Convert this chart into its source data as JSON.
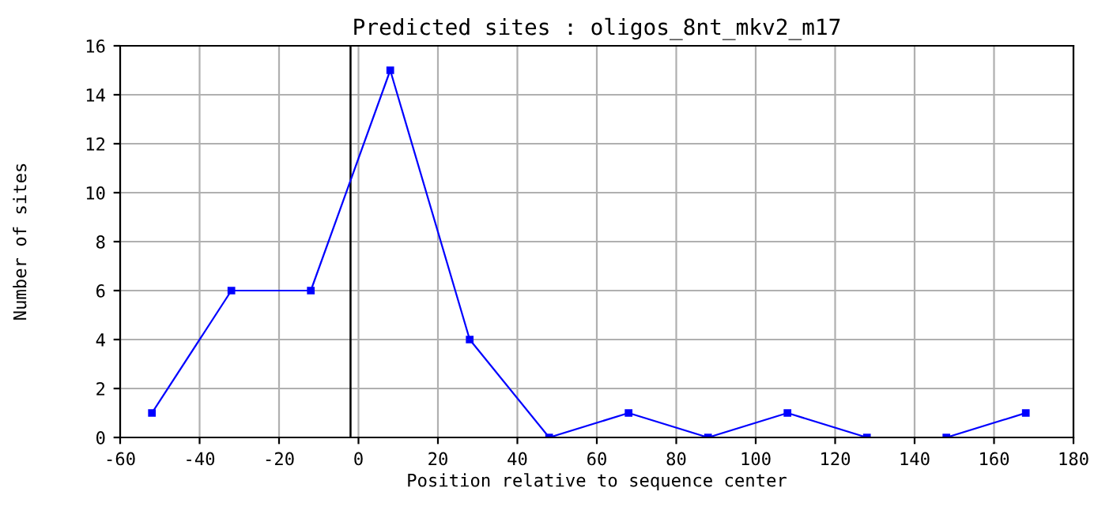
{
  "chart_data": {
    "type": "line",
    "title": "Predicted sites : oligos_8nt_mkv2_m17",
    "xlabel": "Position relative to sequence center",
    "ylabel": "Number of sites",
    "x": [
      -52,
      -32,
      -12,
      8,
      28,
      48,
      68,
      88,
      108,
      128,
      148,
      168
    ],
    "series": [
      {
        "color": "#0000ff",
        "values": [
          1,
          6,
          6,
          15,
          4,
          0,
          1,
          0,
          1,
          0,
          0,
          1
        ]
      }
    ],
    "xlim": [
      -60,
      180
    ],
    "xticks": [
      -60,
      -40,
      -20,
      0,
      20,
      40,
      60,
      80,
      100,
      120,
      140,
      160,
      180
    ],
    "ylim": [
      0,
      16
    ],
    "yticks": [
      0,
      2,
      4,
      6,
      8,
      10,
      12,
      14,
      16
    ],
    "ref_lines": [
      {
        "axis": "x",
        "value": -2,
        "color": "#000000"
      }
    ],
    "grid": true,
    "marker": "square",
    "line_style": "solid",
    "legend": false
  }
}
